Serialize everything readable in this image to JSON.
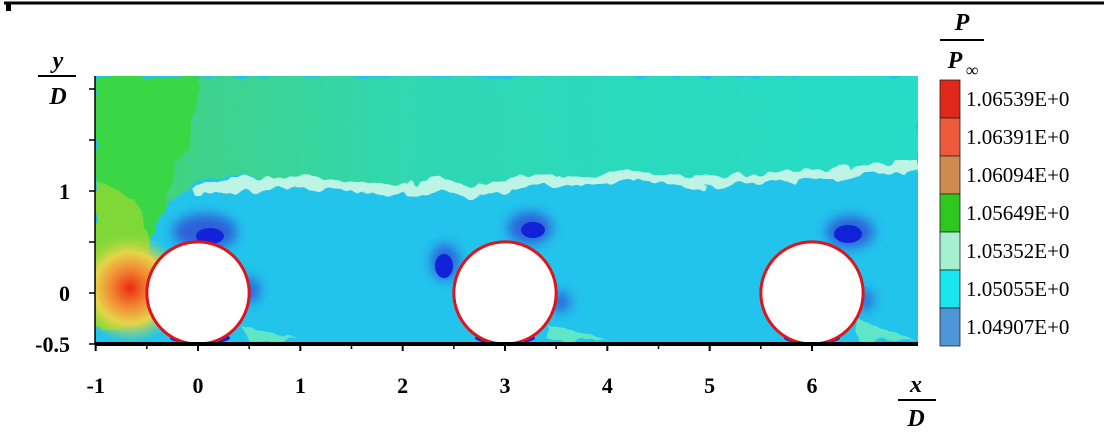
{
  "chart_data": {
    "type": "heatmap",
    "title": "",
    "xlabel": {
      "numerator": "x",
      "denominator": "D"
    },
    "ylabel": {
      "numerator": "y",
      "denominator": "D"
    },
    "colorbar_label": {
      "numerator": "P",
      "denominator": "P",
      "subscript": "∞"
    },
    "xlim": [
      -1,
      7
    ],
    "ylim": [
      -0.5,
      2
    ],
    "x_ticks": [
      -1,
      0,
      1,
      2,
      3,
      4,
      5,
      6
    ],
    "x_tick_labels": [
      "-1",
      "0",
      "1",
      "2",
      "3",
      "4",
      "5",
      "6"
    ],
    "y_ticks": [
      -0.5,
      0,
      1
    ],
    "y_tick_labels": [
      "-0.5",
      "0",
      "1"
    ],
    "cylinders": [
      {
        "cx": 0,
        "cy": 0,
        "r": 0.5
      },
      {
        "cx": 3,
        "cy": 0,
        "r": 0.5
      },
      {
        "cx": 6,
        "cy": 0,
        "r": 0.5
      }
    ],
    "colorbar": [
      {
        "label": "1.06539E+0",
        "color": "#e0281a"
      },
      {
        "label": "1.06391E+0",
        "color": "#ef5a3c"
      },
      {
        "label": "1.06094E+0",
        "color": "#cf8a52"
      },
      {
        "label": "1.05649E+0",
        "color": "#2fc81f"
      },
      {
        "label": "1.05352E+0",
        "color": "#a6f0d0"
      },
      {
        "label": "1.05055E+0",
        "color": "#19e6ee"
      },
      {
        "label": "1.04907E+0",
        "color": "#4f96d8"
      }
    ],
    "grid": false,
    "legend": "right colorbar"
  }
}
